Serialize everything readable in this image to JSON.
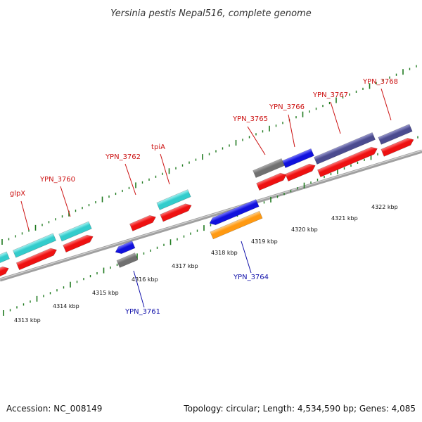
{
  "header": {
    "title": "Yersinia pestis Nepal516, complete genome"
  },
  "footer": {
    "accession": "Accession: NC_008149",
    "summary": "Topology: circular; Length: 4,534,590 bp; Genes: 4,085"
  },
  "colors": {
    "backbone": "#808080",
    "tick": "#1f7a1f",
    "label_top": "#cc1111",
    "label_bottom": "#1111aa",
    "red": "#ee1111",
    "cyan": "#33cccc",
    "blue": "#1111dd",
    "gray": "#707070",
    "navy": "#4b4b8f",
    "orange": "#ff9911"
  },
  "scale": {
    "unit": "kbp",
    "labels": [
      "4313 kbp",
      "4314 kbp",
      "4315 kbp",
      "4316 kbp",
      "4317 kbp",
      "4318 kbp",
      "4319 kbp",
      "4320 kbp",
      "4321 kbp",
      "4322 kbp"
    ]
  },
  "gene_labels": [
    {
      "id": "glpx",
      "text": "glpX",
      "strand": "top"
    },
    {
      "id": "ypn3760",
      "text": "YPN_3760",
      "strand": "top"
    },
    {
      "id": "ypn3762",
      "text": "YPN_3762",
      "strand": "top"
    },
    {
      "id": "tpia",
      "text": "tpiA",
      "strand": "top"
    },
    {
      "id": "ypn3765",
      "text": "YPN_3765",
      "strand": "top"
    },
    {
      "id": "ypn3766",
      "text": "YPN_3766",
      "strand": "top"
    },
    {
      "id": "ypn3767",
      "text": "YPN_3767",
      "strand": "top"
    },
    {
      "id": "ypn3768",
      "text": "YPN_3768",
      "strand": "top"
    },
    {
      "id": "ypn3761",
      "text": "YPN_3761",
      "strand": "bottom"
    },
    {
      "id": "ypn3764",
      "text": "YPN_3764",
      "strand": "bottom"
    }
  ]
}
